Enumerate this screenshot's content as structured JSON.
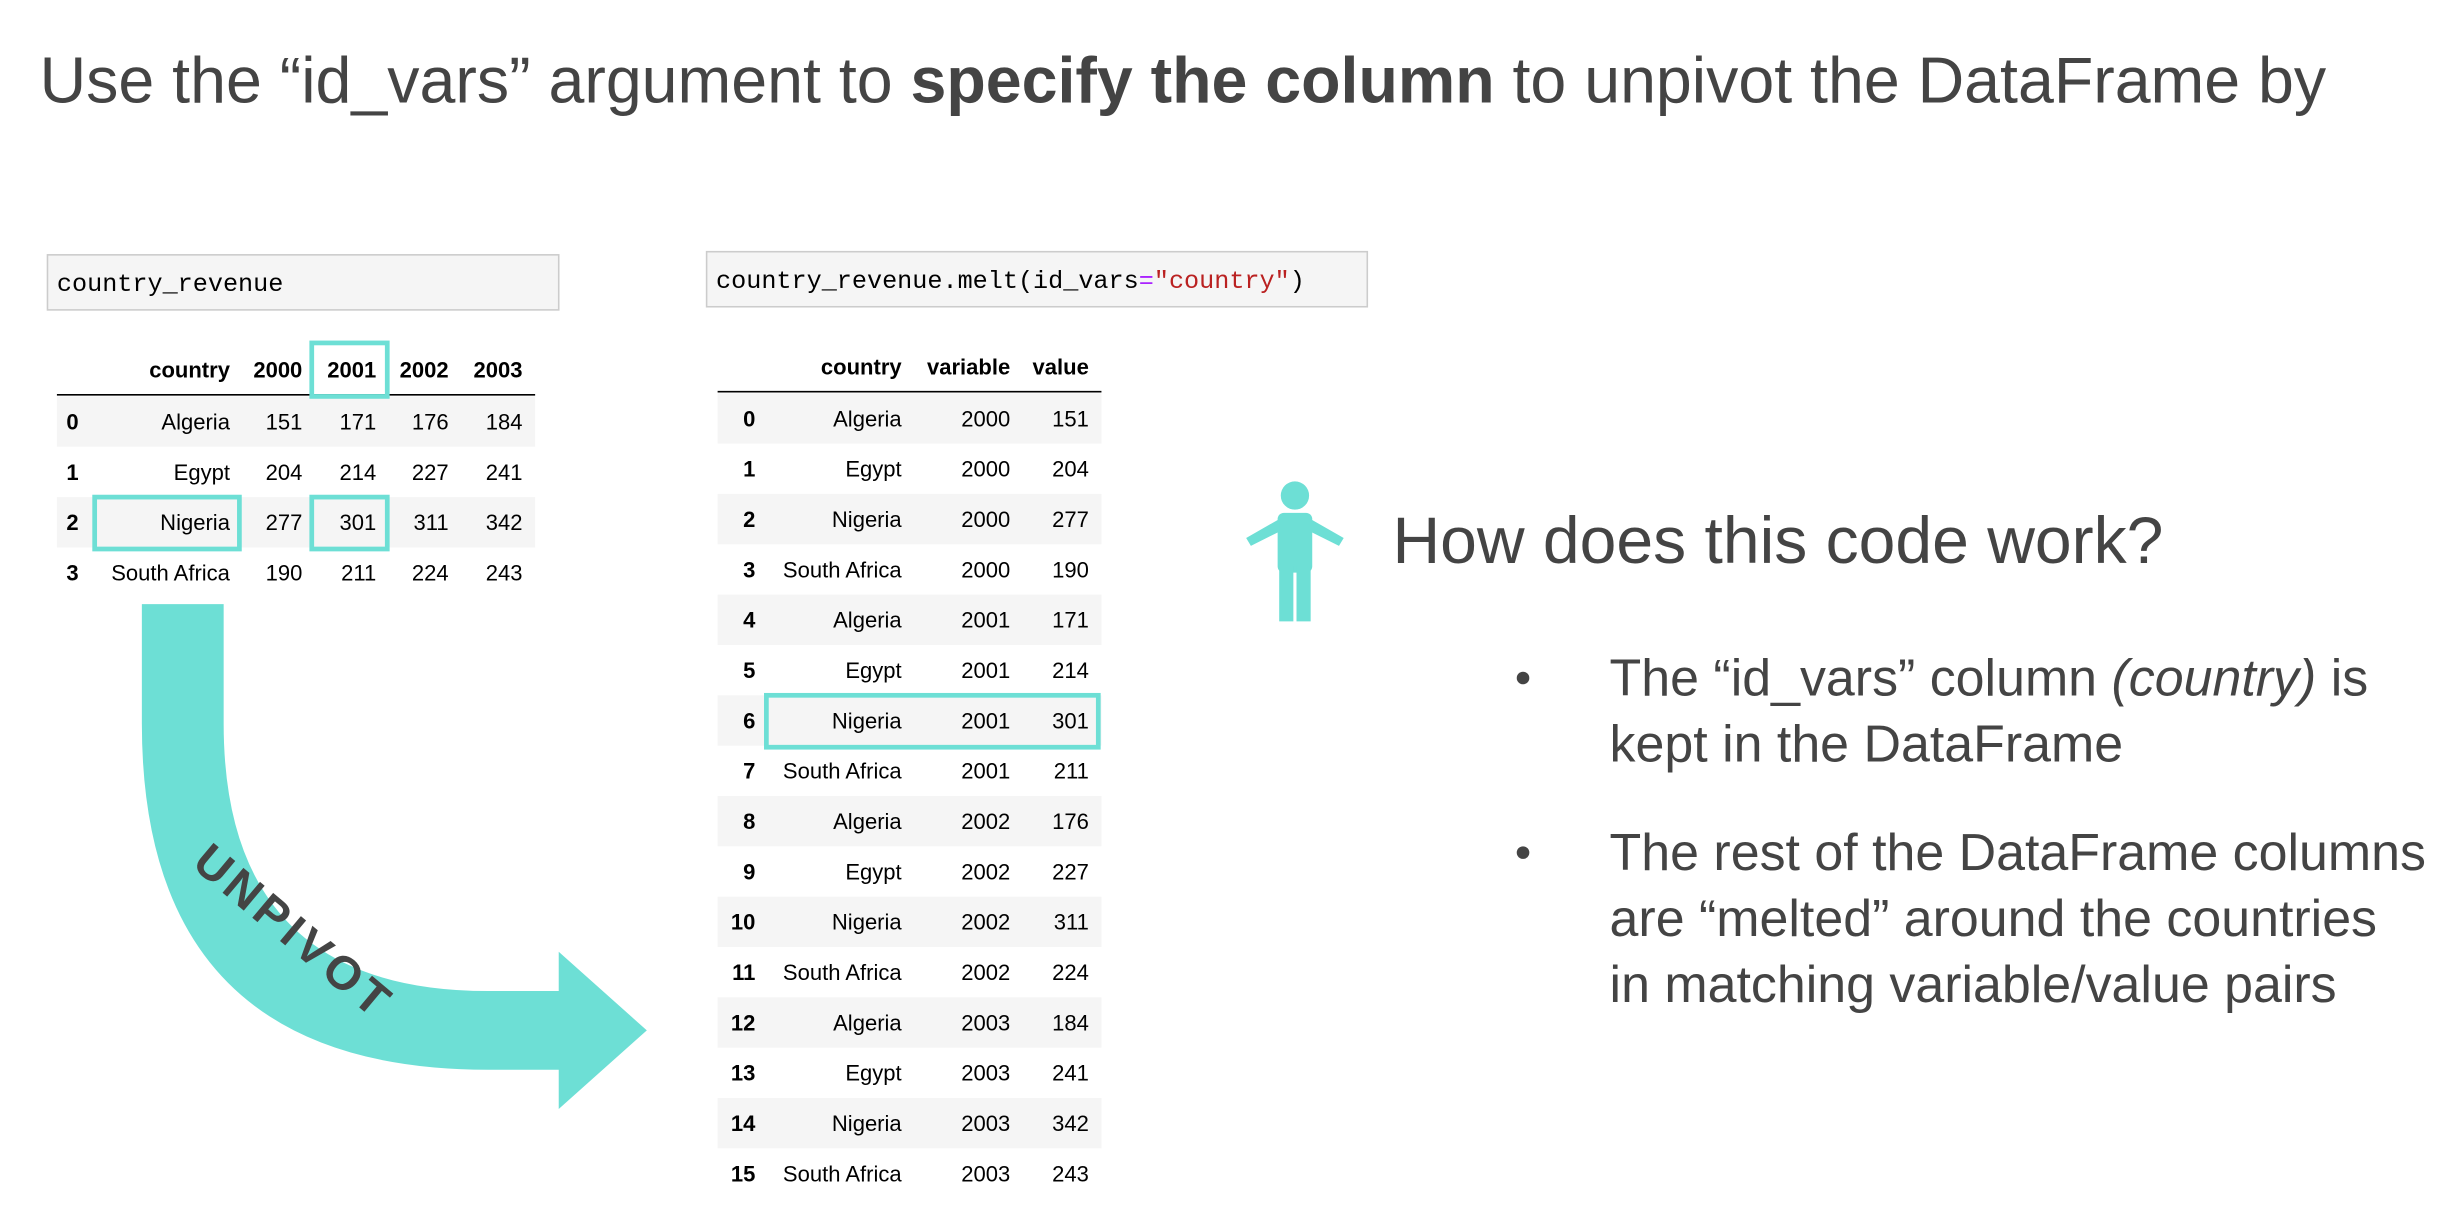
{
  "title": {
    "before": "Use the “id_vars” argument to ",
    "bold": "specify the column",
    "after": " to unpivot the DataFrame by"
  },
  "left_code": "country_revenue",
  "left_table": {
    "columns": [
      "country",
      "2000",
      "2001",
      "2002",
      "2003"
    ],
    "rows": [
      [
        0,
        "Algeria",
        151,
        171,
        176,
        184
      ],
      [
        1,
        "Egypt",
        204,
        214,
        227,
        241
      ],
      [
        2,
        "Nigeria",
        277,
        301,
        311,
        342
      ],
      [
        3,
        "South Africa",
        190,
        211,
        224,
        243
      ]
    ]
  },
  "right_code": {
    "call": "country_revenue.melt(id_vars",
    "equals": "=",
    "arg": "\"country\"",
    "close": ")"
  },
  "right_table": {
    "columns": [
      "country",
      "variable",
      "value"
    ],
    "rows": [
      [
        0,
        "Algeria",
        2000,
        151
      ],
      [
        1,
        "Egypt",
        2000,
        204
      ],
      [
        2,
        "Nigeria",
        2000,
        277
      ],
      [
        3,
        "South Africa",
        2000,
        190
      ],
      [
        4,
        "Algeria",
        2001,
        171
      ],
      [
        5,
        "Egypt",
        2001,
        214
      ],
      [
        6,
        "Nigeria",
        2001,
        301
      ],
      [
        7,
        "South Africa",
        2001,
        211
      ],
      [
        8,
        "Algeria",
        2002,
        176
      ],
      [
        9,
        "Egypt",
        2002,
        227
      ],
      [
        10,
        "Nigeria",
        2002,
        311
      ],
      [
        11,
        "South Africa",
        2002,
        224
      ],
      [
        12,
        "Algeria",
        2003,
        184
      ],
      [
        13,
        "Egypt",
        2003,
        241
      ],
      [
        14,
        "Nigeria",
        2003,
        342
      ],
      [
        15,
        "South Africa",
        2003,
        243
      ]
    ]
  },
  "arrow_label": "UNPIVOT",
  "heading": "How does this code work?",
  "bullets": [
    {
      "lines": [
        [
          "The “id_vars” column ",
          "(country)",
          " is"
        ],
        [
          "kept in the DataFrame"
        ]
      ]
    },
    {
      "lines": [
        [
          "The rest of the DataFrame columns"
        ],
        [
          "are “melted” around the countries"
        ],
        [
          "in matching variable/value pairs"
        ]
      ]
    }
  ]
}
